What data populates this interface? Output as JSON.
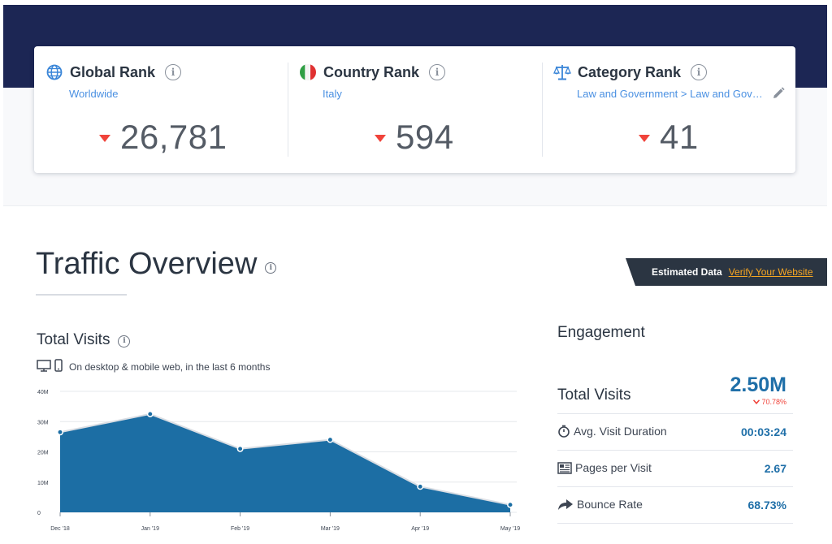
{
  "ranks": {
    "global": {
      "title": "Global Rank",
      "subtitle": "Worldwide",
      "value": "26,781",
      "icon": "globe-icon"
    },
    "country": {
      "title": "Country Rank",
      "subtitle": "Italy",
      "value": "594",
      "icon": "italy-flag-icon"
    },
    "category": {
      "title": "Category Rank",
      "subtitle": "Law and Government > Law and Government",
      "value": "41",
      "icon": "scales-icon"
    }
  },
  "traffic": {
    "title": "Traffic Overview",
    "estimated_label": "Estimated Data",
    "verify_link": "Verify Your Website"
  },
  "total_visits_chart": {
    "title": "Total Visits",
    "device_note": "On desktop & mobile web, in the last 6 months"
  },
  "chart_data": {
    "type": "area",
    "x": [
      "Dec '18",
      "Jan '19",
      "Feb '19",
      "Mar '19",
      "Apr '19",
      "May '19"
    ],
    "values": [
      26.5,
      32.5,
      21,
      24,
      8.5,
      2.5
    ],
    "y_unit": "M",
    "yticks": [
      "0",
      "10M",
      "20M",
      "30M",
      "40M"
    ],
    "ylim": [
      0,
      40
    ],
    "grid": true,
    "color": "#1c6ea4"
  },
  "engagement": {
    "title": "Engagement",
    "total_label": "Total Visits",
    "total_value": "2.50M",
    "total_change": "70.78%",
    "rows": [
      {
        "label": "Avg. Visit Duration",
        "value": "00:03:24",
        "icon": "stopwatch-icon"
      },
      {
        "label": "Pages per Visit",
        "value": "2.67",
        "icon": "pages-icon"
      },
      {
        "label": "Bounce Rate",
        "value": "68.73%",
        "icon": "bounce-arrow-icon"
      }
    ]
  },
  "colors": {
    "header_band": "#1c2654",
    "accent_blue": "#4a90e2",
    "value_blue": "#1f6fa8",
    "down_red": "#f0433a",
    "link_orange": "#f6a623"
  }
}
